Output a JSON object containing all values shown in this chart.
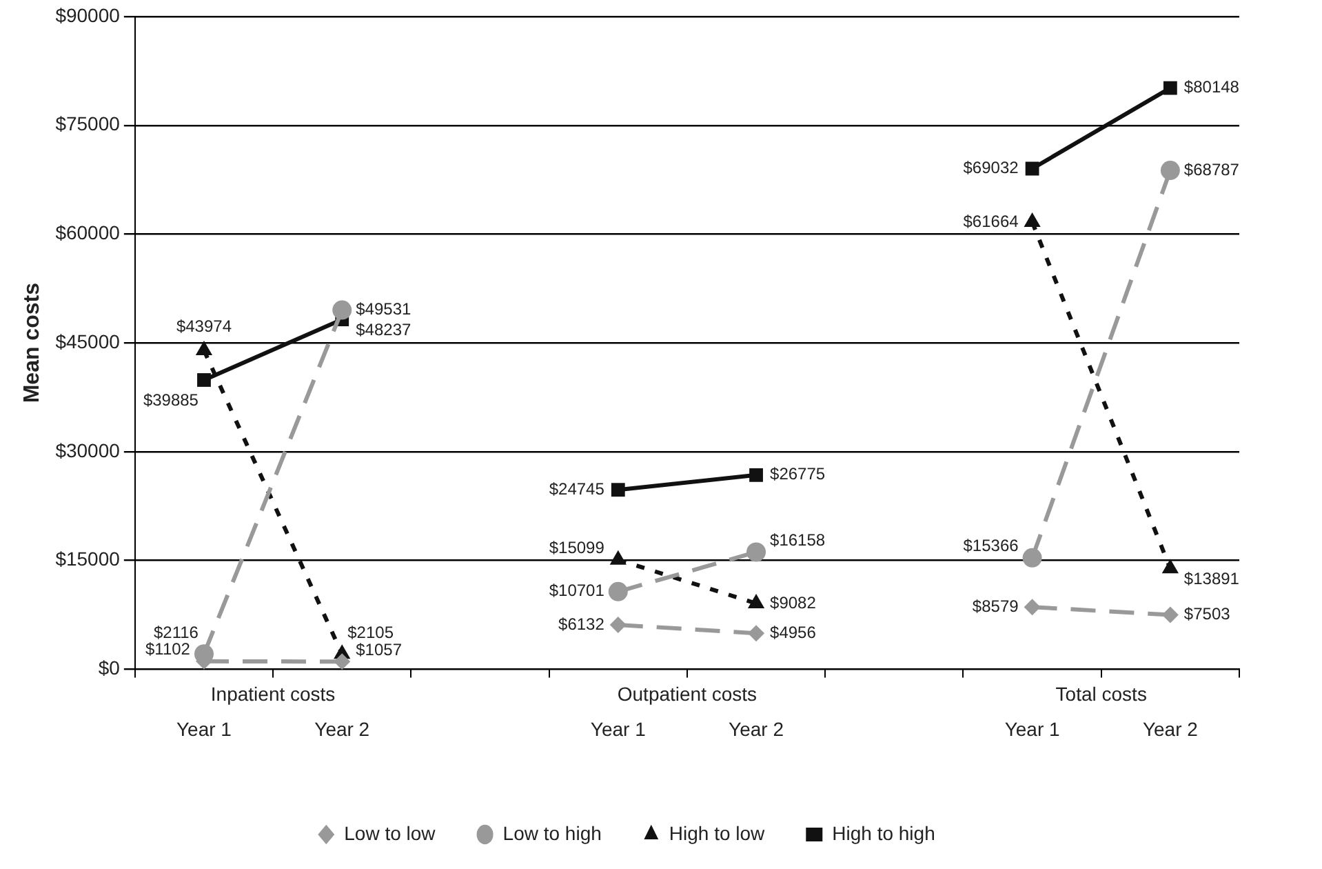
{
  "chart_data": {
    "type": "line",
    "ylabel": "Mean costs",
    "categories": [
      "Year 1",
      "Year 2",
      null,
      "Year 1",
      "Year 2",
      null,
      "Year 1",
      "Year 2"
    ],
    "annotations": [
      "Inpatient costs",
      "Outpatient costs",
      "Total costs"
    ],
    "ylim": [
      0,
      90000
    ],
    "yticks": [
      {
        "value": 0,
        "label": "$0"
      },
      {
        "value": 15000,
        "label": "$15000"
      },
      {
        "value": 30000,
        "label": "$30000"
      },
      {
        "value": 45000,
        "label": "$45000"
      },
      {
        "value": 60000,
        "label": "$60000"
      },
      {
        "value": 75000,
        "label": "$75000"
      },
      {
        "value": 90000,
        "label": "$90000"
      }
    ],
    "grid": "y",
    "legend": "bottom",
    "series": [
      {
        "name": "Low to low",
        "color": "#999999",
        "marker": "diamond",
        "line_style": "dashed",
        "values": [
          1102,
          1057,
          null,
          6132,
          4956,
          null,
          8579,
          7503
        ],
        "value_labels": [
          "$1102",
          "$1057",
          null,
          "$6132",
          "$4956",
          null,
          "$8579",
          "$7503"
        ]
      },
      {
        "name": "Low to high",
        "color": "#999999",
        "marker": "circle",
        "line_style": "dashed",
        "values": [
          2116,
          49531,
          null,
          10701,
          16158,
          null,
          15366,
          68787
        ],
        "value_labels": [
          "$2116",
          "$49531",
          null,
          "$10701",
          "$16158",
          null,
          "$15366",
          "$68787"
        ]
      },
      {
        "name": "High to low",
        "color": "#111111",
        "marker": "triangle",
        "line_style": "dotted",
        "values": [
          43974,
          2105,
          null,
          15099,
          9082,
          null,
          61664,
          13891
        ],
        "value_labels": [
          "$43974",
          "$2105",
          null,
          "$15099",
          "$9082",
          null,
          "$61664",
          "$13891"
        ]
      },
      {
        "name": "High to high",
        "color": "#111111",
        "marker": "square",
        "line_style": "solid",
        "values": [
          39885,
          48237,
          null,
          24745,
          26775,
          null,
          69032,
          80148
        ],
        "value_labels": [
          "$39885",
          "$48237",
          null,
          "$24745",
          "$26775",
          null,
          "$69032",
          "$80148"
        ]
      }
    ]
  }
}
